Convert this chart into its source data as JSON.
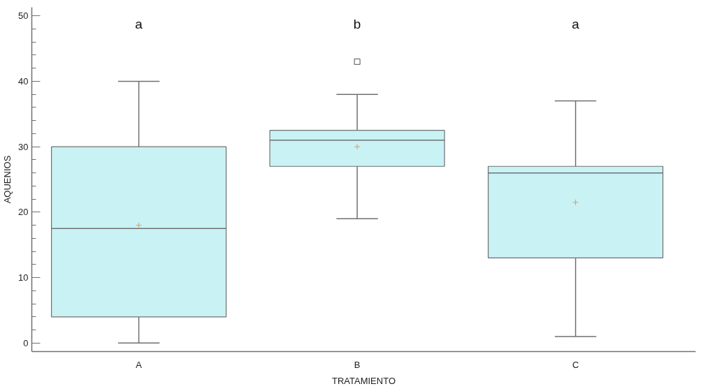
{
  "chart_data": {
    "type": "box",
    "xlabel": "TRATAMIENTO",
    "ylabel": "AQUENIOS",
    "categories": [
      "A",
      "B",
      "C"
    ],
    "series": [
      {
        "color": "#c9f2f5",
        "boxes": [
          {
            "low": 0,
            "q1": 4,
            "median": 17.5,
            "q3": 30,
            "high": 40,
            "mean": 18
          },
          {
            "low": 19,
            "q1": 27,
            "median": 31,
            "q3": 32.5,
            "high": 38,
            "mean": 30,
            "outliers": [
              43
            ]
          },
          {
            "low": 1,
            "q1": 13,
            "median": 26,
            "q3": 27,
            "high": 37,
            "mean": 21.5
          }
        ]
      }
    ],
    "ylim": [
      -1.3,
      51.3
    ],
    "yticks": [
      0,
      {
        "value": 2,
        "label": null
      },
      {
        "value": 4,
        "label": null
      },
      {
        "value": 6,
        "label": null
      },
      {
        "value": 8,
        "label": null
      },
      10,
      {
        "value": 12,
        "label": null
      },
      {
        "value": 14,
        "label": null
      },
      {
        "value": 16,
        "label": null
      },
      {
        "value": 18,
        "label": null
      },
      20,
      {
        "value": 22,
        "label": null
      },
      {
        "value": 24,
        "label": null
      },
      {
        "value": 26,
        "label": null
      },
      {
        "value": 28,
        "label": null
      },
      30,
      {
        "value": 32,
        "label": null
      },
      {
        "value": 34,
        "label": null
      },
      {
        "value": 36,
        "label": null
      },
      {
        "value": 38,
        "label": null
      },
      40,
      {
        "value": 42,
        "label": null
      },
      {
        "value": 44,
        "label": null
      },
      {
        "value": 46,
        "label": null
      },
      {
        "value": 48,
        "label": null
      },
      50
    ],
    "annotations": [
      "a",
      "b",
      "a"
    ],
    "grid": false,
    "marker": "square"
  }
}
